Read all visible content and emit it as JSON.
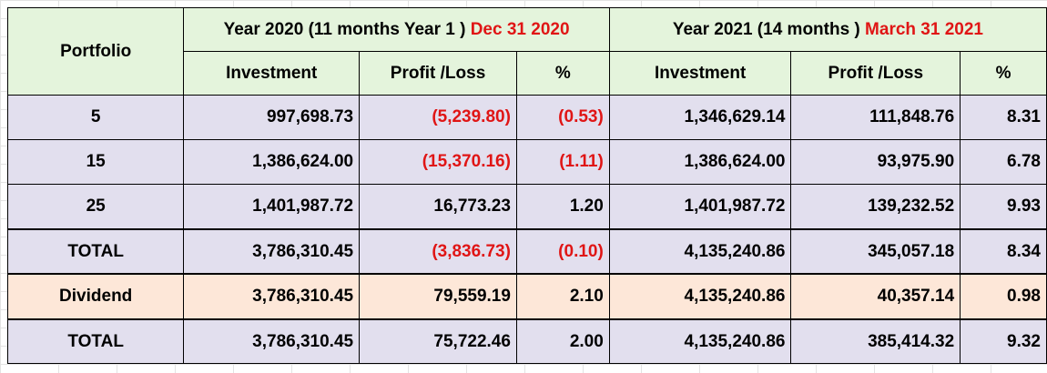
{
  "header": {
    "portfolio_label": "Portfolio",
    "year2020": {
      "prefix": "Year  2020  (11 months Year 1 ) ",
      "date": "Dec 31 2020"
    },
    "year2021": {
      "prefix": "Year  2021  (14 months   ) ",
      "date": "March 31 2021"
    },
    "investment_label": "Investment",
    "profit_label": "Profit /Loss",
    "pct_label": "%"
  },
  "rows": [
    {
      "label": "5",
      "y2020": {
        "investment": "997,698.73",
        "profit": "(5,239.80)",
        "pct": "(0.53)"
      },
      "y2021": {
        "investment": "1,346,629.14",
        "profit": "111,848.76",
        "pct": "8.31"
      }
    },
    {
      "label": "15",
      "y2020": {
        "investment": "1,386,624.00",
        "profit": "(15,370.16)",
        "pct": "(1.11)"
      },
      "y2021": {
        "investment": "1,386,624.00",
        "profit": "93,975.90",
        "pct": "6.78"
      }
    },
    {
      "label": "25",
      "y2020": {
        "investment": "1,401,987.72",
        "profit": "16,773.23",
        "pct": "1.20"
      },
      "y2021": {
        "investment": "1,401,987.72",
        "profit": "139,232.52",
        "pct": "9.93"
      }
    },
    {
      "label": "TOTAL",
      "y2020": {
        "investment": "3,786,310.45",
        "profit": "(3,836.73)",
        "pct": "(0.10)"
      },
      "y2021": {
        "investment": "4,135,240.86",
        "profit": "345,057.18",
        "pct": "8.34"
      }
    },
    {
      "label": "Dividend",
      "y2020": {
        "investment": "3,786,310.45",
        "profit": "79,559.19",
        "pct": "2.10"
      },
      "y2021": {
        "investment": "4,135,240.86",
        "profit": "40,357.14",
        "pct": "0.98"
      }
    },
    {
      "label": "TOTAL",
      "y2020": {
        "investment": "3,786,310.45",
        "profit": "75,722.46",
        "pct": "2.00"
      },
      "y2021": {
        "investment": "4,135,240.86",
        "profit": "385,414.32",
        "pct": "9.32"
      }
    }
  ],
  "colors": {
    "header_bg": "#e4f4dc",
    "row_bg": "#e2dfee",
    "dividend_bg": "#fde7d8",
    "negative_text": "#e01515"
  }
}
